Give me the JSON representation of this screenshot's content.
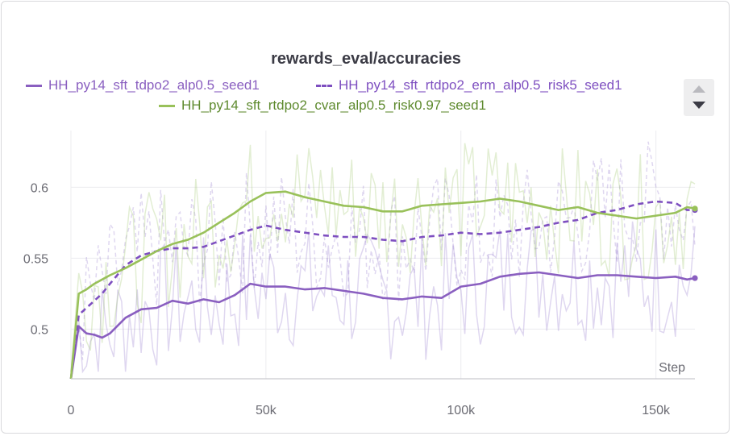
{
  "chart_data": {
    "type": "line",
    "title": "rewards_eval/accuracies",
    "xlabel": "Step",
    "ylabel": "",
    "xlim": [
      0,
      160000
    ],
    "ylim": [
      0.465,
      0.64
    ],
    "xticks": [
      0,
      50000,
      100000,
      150000
    ],
    "xtick_labels": [
      "0",
      "50k",
      "100k",
      "150k"
    ],
    "yticks": [
      0.5,
      0.55,
      0.6
    ],
    "ytick_labels": [
      "0.5",
      "0.55",
      "0.6"
    ],
    "grid": true,
    "legend_position": "top",
    "series": [
      {
        "name": "HH_py14_sft_tdpo2_alp0.5_seed1",
        "color": "#8a5fc0",
        "dash": "solid",
        "x": [
          0,
          2000,
          4000,
          6000,
          8000,
          10000,
          14000,
          18000,
          22000,
          26000,
          30000,
          34000,
          38000,
          42000,
          46000,
          50000,
          55000,
          60000,
          65000,
          70000,
          75000,
          80000,
          85000,
          90000,
          95000,
          100000,
          105000,
          110000,
          115000,
          120000,
          125000,
          130000,
          135000,
          140000,
          145000,
          150000,
          155000,
          158000,
          160000
        ],
        "values": [
          0.465,
          0.502,
          0.497,
          0.496,
          0.494,
          0.497,
          0.508,
          0.514,
          0.515,
          0.52,
          0.518,
          0.521,
          0.519,
          0.524,
          0.532,
          0.53,
          0.53,
          0.528,
          0.529,
          0.527,
          0.525,
          0.522,
          0.521,
          0.523,
          0.522,
          0.53,
          0.532,
          0.537,
          0.539,
          0.54,
          0.538,
          0.536,
          0.538,
          0.538,
          0.537,
          0.536,
          0.537,
          0.535,
          0.536
        ]
      },
      {
        "name": "HH_py14_sft_rtdpo2_erm_alp0.5_risk5_seed1",
        "color": "#7e4fc0",
        "dash": "dashed",
        "x": [
          0,
          2000,
          4000,
          6000,
          8000,
          10000,
          14000,
          18000,
          22000,
          26000,
          30000,
          34000,
          38000,
          42000,
          46000,
          50000,
          55000,
          60000,
          65000,
          70000,
          75000,
          80000,
          85000,
          90000,
          95000,
          100000,
          105000,
          110000,
          115000,
          120000,
          125000,
          130000,
          135000,
          140000,
          145000,
          150000,
          155000,
          158000,
          160000
        ],
        "values": [
          0.465,
          0.51,
          0.515,
          0.52,
          0.525,
          0.532,
          0.545,
          0.552,
          0.555,
          0.557,
          0.557,
          0.558,
          0.562,
          0.566,
          0.57,
          0.573,
          0.57,
          0.568,
          0.566,
          0.565,
          0.565,
          0.563,
          0.562,
          0.565,
          0.566,
          0.568,
          0.567,
          0.568,
          0.57,
          0.572,
          0.575,
          0.577,
          0.582,
          0.584,
          0.588,
          0.59,
          0.589,
          0.584,
          0.584
        ]
      },
      {
        "name": "HH_py14_sft_rtdpo2_cvar_alp0.5_risk0.97_seed1",
        "color": "#99c15a",
        "dash": "solid",
        "x": [
          0,
          2000,
          4000,
          6000,
          8000,
          10000,
          14000,
          18000,
          22000,
          26000,
          30000,
          34000,
          38000,
          42000,
          46000,
          50000,
          55000,
          60000,
          65000,
          70000,
          75000,
          80000,
          85000,
          90000,
          95000,
          100000,
          105000,
          110000,
          115000,
          120000,
          125000,
          130000,
          135000,
          140000,
          145000,
          150000,
          155000,
          158000,
          160000
        ],
        "values": [
          0.465,
          0.525,
          0.528,
          0.532,
          0.535,
          0.538,
          0.543,
          0.549,
          0.555,
          0.56,
          0.563,
          0.568,
          0.575,
          0.582,
          0.59,
          0.596,
          0.597,
          0.593,
          0.59,
          0.587,
          0.586,
          0.583,
          0.583,
          0.587,
          0.588,
          0.589,
          0.59,
          0.592,
          0.59,
          0.587,
          0.584,
          0.586,
          0.582,
          0.58,
          0.578,
          0.58,
          0.582,
          0.586,
          0.585
        ]
      }
    ]
  }
}
